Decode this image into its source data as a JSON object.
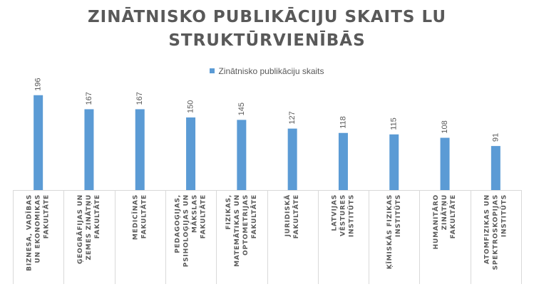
{
  "chart_data": {
    "type": "bar",
    "title_lines": [
      "ZINĀTNISKO PUBLIKĀCIJU SKAITS LU",
      "STRUKTŪRVIENĪBĀS"
    ],
    "legend_position": "top",
    "grid": false,
    "series": [
      {
        "name": "Zinātnisko publikāciju skaits",
        "color": "#5B9BD5",
        "values": [
          196,
          167,
          167,
          150,
          145,
          127,
          118,
          115,
          108,
          91
        ]
      }
    ],
    "categories": [
      [
        "BIZNESA, VADĪBAS",
        "UN EKONOMIKAS",
        "FAKULTĀTE"
      ],
      [
        "ĢEOGRĀFIJAS UN",
        "ZEMES ZINĀTŅU",
        "FAKULTĀTE"
      ],
      [
        "MEDICĪNAS",
        "FAKULTĀTE"
      ],
      [
        "PEDAGOĢIJAS,",
        "PSIHOLOĢIJAS UN",
        "MĀKSLAS",
        "FAKULTĀTE"
      ],
      [
        "FIZIKAS,",
        "MATEMĀTIKAS UN",
        "OPTOMETRIJAS",
        "FAKULTĀTE"
      ],
      [
        "JURIDISKĀ",
        "FAKULTĀTE"
      ],
      [
        "LATVIJAS",
        "VĒSTURES",
        "INSTITŪTS"
      ],
      [
        "ĶĪMISKĀS FIZIKAS",
        "INSTITŪTS"
      ],
      [
        "HUMANITĀRO",
        "ZINĀTŅU",
        "FAKULTĀTE"
      ],
      [
        "ATOMFIZIKAS UN",
        "SPEKTROSKOPIJAS",
        "INSTITŪTS"
      ]
    ],
    "ylim": [
      0,
      200
    ],
    "colors": {
      "axis": "#D9D9D9",
      "text": "#595959"
    }
  }
}
